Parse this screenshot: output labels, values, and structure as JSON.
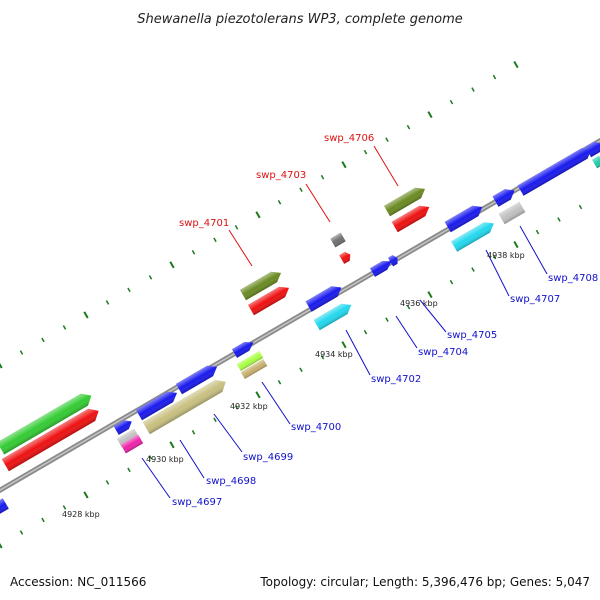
{
  "title": "Shewanella piezotolerans WP3, complete genome",
  "footer": {
    "accession": "Accession: NC_011566",
    "summary": "Topology: circular; Length: 5,396,476 bp; Genes: 5,047"
  },
  "colors": {
    "label_forward": "#dd1111",
    "label_reverse": "#1111cc",
    "backbone": "#8a8a8a",
    "tick": "#1c7a1c"
  },
  "kbp_labels": [
    "4928 kbp",
    "4930 kbp",
    "4932 kbp",
    "4934 kbp",
    "4936 kbp",
    "4938 kbp"
  ],
  "gene_labels_forward": [
    "swp_4701",
    "swp_4703",
    "swp_4706"
  ],
  "gene_labels_reverse": [
    "swp_4697",
    "swp_4698",
    "swp_4699",
    "swp_4700",
    "swp_4702",
    "swp_4704",
    "swp_4705",
    "swp_4707",
    "swp_4708"
  ],
  "feature_colors": {
    "blue": "#1a1aee",
    "red": "#ee1111",
    "green": "#33cc33",
    "olive": "#6a8a22",
    "khaki": "#c8c080",
    "cyan": "#22d8ee",
    "gray": "#c0c0c0",
    "darkgray": "#707070",
    "magenta": "#ee22aa",
    "lime": "#aaff44",
    "tan": "#c8b070",
    "teal": "#22ccaa"
  }
}
